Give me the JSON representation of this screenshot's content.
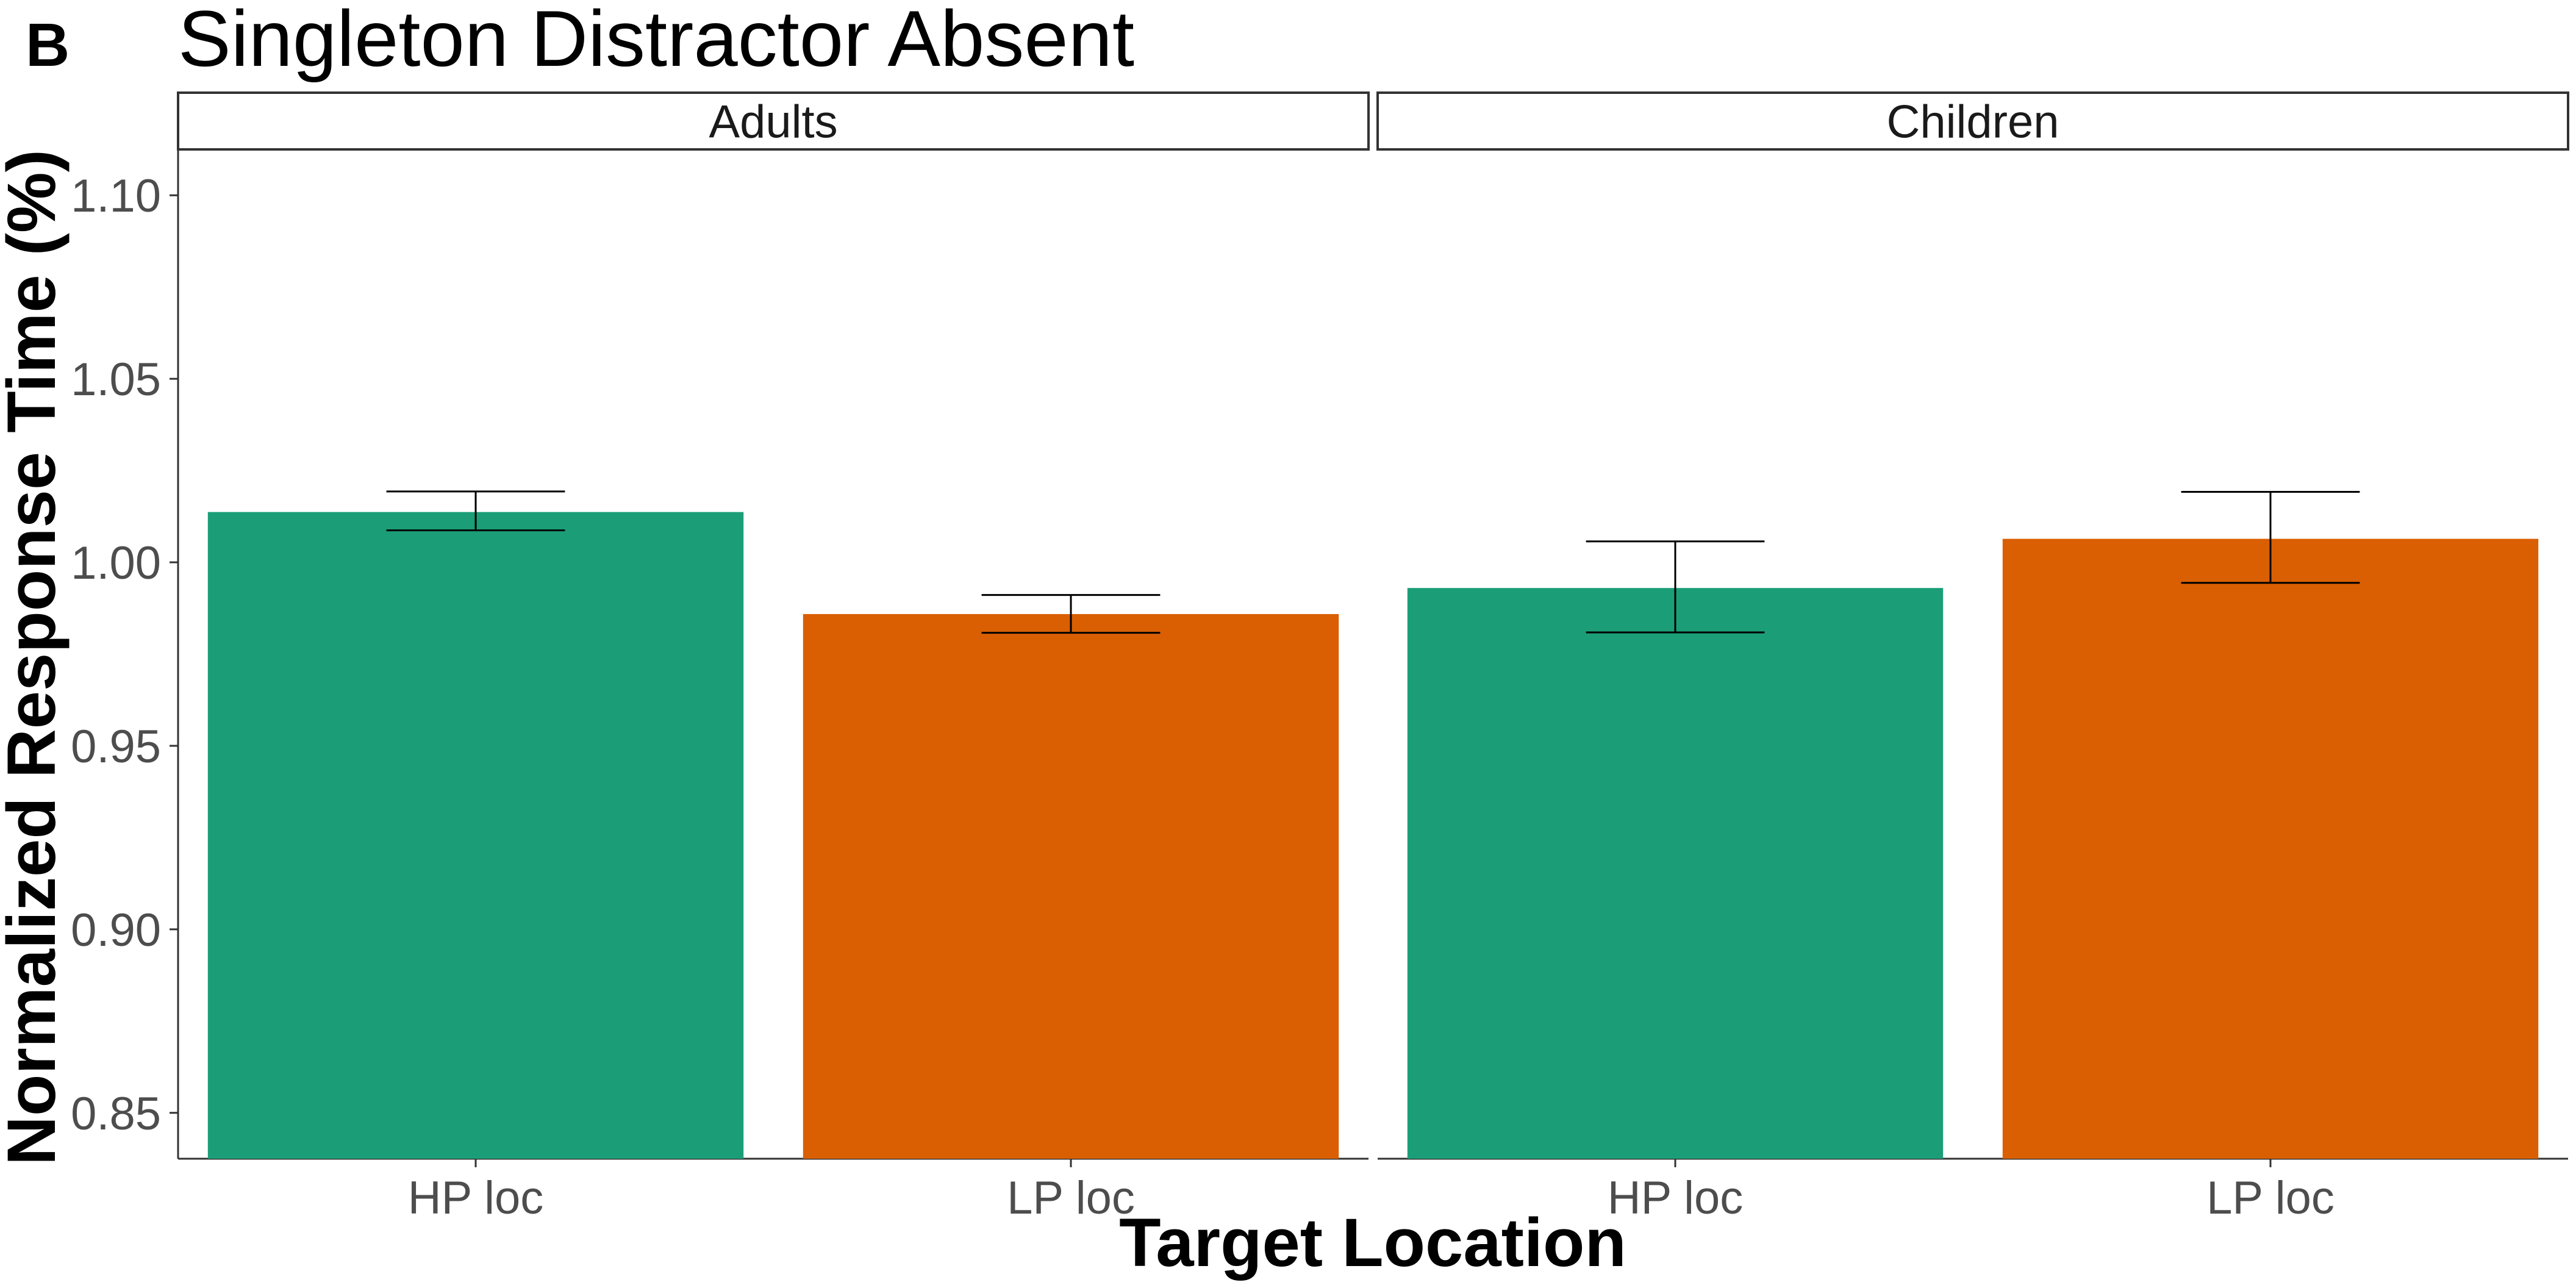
{
  "panel_letter": "B",
  "chart_data": {
    "type": "bar",
    "title": "Singleton Distractor Absent",
    "xlabel": "Target Location",
    "ylabel": "Normalized Response Time (%)",
    "ylim": [
      0.8375,
      1.1125
    ],
    "yticks": [
      "0.85",
      "0.90",
      "0.95",
      "1.00",
      "1.05",
      "1.10"
    ],
    "ytick_values": [
      0.85,
      0.9,
      0.95,
      1.0,
      1.05,
      1.1
    ],
    "categories": [
      "HP loc",
      "LP loc"
    ],
    "colors": {
      "HP loc": "#1b9e77",
      "LP loc": "#d95f02"
    },
    "grid": false,
    "legend": "none",
    "facets": [
      {
        "name": "Adults",
        "values": [
          1.0137,
          0.9859
        ],
        "error_low": [
          1.0087,
          0.9808
        ],
        "error_high": [
          1.0193,
          0.9911
        ]
      },
      {
        "name": "Children",
        "values": [
          0.993,
          1.0064
        ],
        "error_low": [
          0.9809,
          0.9944
        ],
        "error_high": [
          1.0057,
          1.0192
        ]
      }
    ]
  }
}
